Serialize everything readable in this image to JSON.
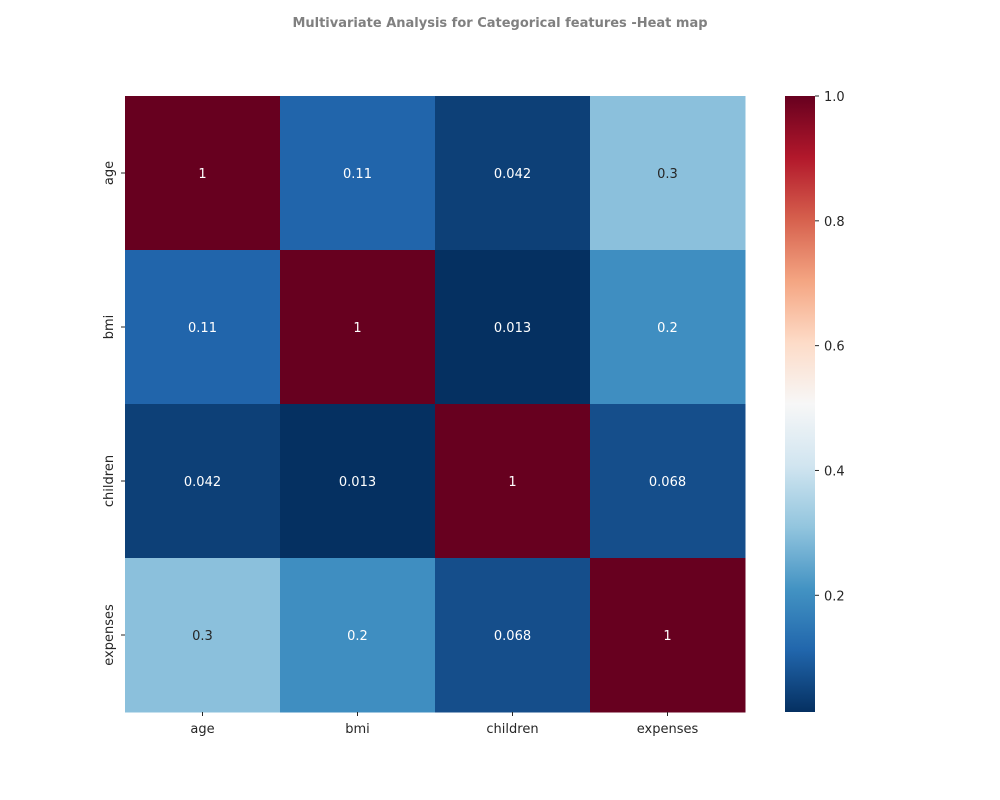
{
  "chart_data": {
    "type": "heatmap",
    "title": "Multivariate Analysis for Categorical features -Heat map",
    "x_categories": [
      "age",
      "bmi",
      "children",
      "expenses"
    ],
    "y_categories": [
      "age",
      "bmi",
      "children",
      "expenses"
    ],
    "values": [
      [
        1,
        0.11,
        0.042,
        0.3
      ],
      [
        0.11,
        1,
        0.013,
        0.2
      ],
      [
        0.042,
        0.013,
        1,
        0.068
      ],
      [
        0.3,
        0.2,
        0.068,
        1
      ]
    ],
    "annotations": [
      [
        "1",
        "0.11",
        "0.042",
        "0.3"
      ],
      [
        "0.11",
        "1",
        "0.013",
        "0.2"
      ],
      [
        "0.042",
        "0.013",
        "1",
        "0.068"
      ],
      [
        "0.3",
        "0.2",
        "0.068",
        "1"
      ]
    ],
    "colormap": "RdBu_r",
    "colorbar": {
      "vmin": 0.013,
      "vmax": 1.0,
      "ticks": [
        0.2,
        0.4,
        0.6,
        0.8,
        1.0
      ],
      "tick_labels": [
        "0.2",
        "0.4",
        "0.6",
        "0.8",
        "1.0"
      ],
      "placement": "right"
    },
    "grid": false,
    "xlabel": "",
    "ylabel": ""
  }
}
